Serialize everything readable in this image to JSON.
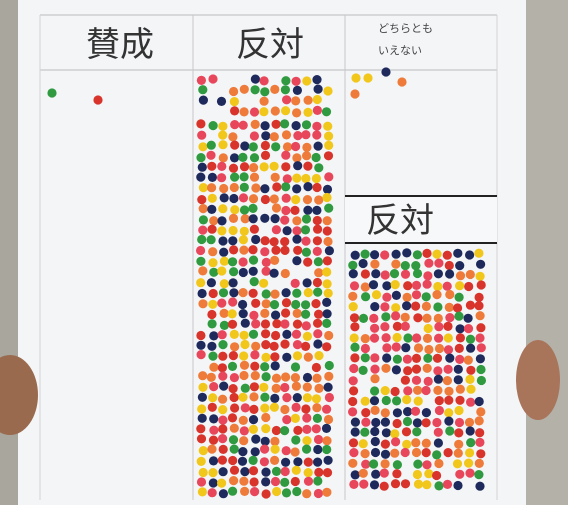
{
  "columns": [
    {
      "lines": [
        "賛成"
      ]
    },
    {
      "lines": [
        "反対"
      ]
    },
    {
      "lines": [
        "どちらとも",
        "いえない"
      ]
    }
  ],
  "overlay": {
    "label": "反対"
  }
}
